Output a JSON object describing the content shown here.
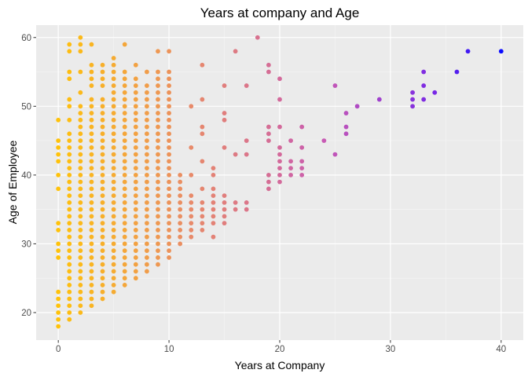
{
  "chart_data": {
    "type": "scatter",
    "title": "Years at company and Age",
    "xlabel": "Years at Company",
    "ylabel": "Age of Employee",
    "xlim": [
      -2,
      42
    ],
    "ylim": [
      16.0,
      61.8
    ],
    "xticks": [
      0,
      10,
      20,
      30,
      40
    ],
    "yticks": [
      20,
      30,
      40,
      50,
      60
    ],
    "grid": true,
    "legend": "none",
    "color_scale": {
      "low": "#FFC20A",
      "mid": "#E88A6A",
      "high": "#0C0CFF",
      "domain": [
        0,
        40
      ]
    },
    "background": "#EBEBEB",
    "points": [
      [
        0,
        18
      ],
      [
        0,
        19
      ],
      [
        0,
        20
      ],
      [
        0,
        21
      ],
      [
        0,
        22
      ],
      [
        0,
        23
      ],
      [
        0,
        28
      ],
      [
        0,
        29
      ],
      [
        0,
        30
      ],
      [
        0,
        32
      ],
      [
        0,
        33
      ],
      [
        0,
        38
      ],
      [
        0,
        40
      ],
      [
        0,
        42
      ],
      [
        0,
        43
      ],
      [
        0,
        44
      ],
      [
        0,
        45
      ],
      [
        0,
        48
      ],
      [
        1,
        19
      ],
      [
        1,
        20
      ],
      [
        1,
        21
      ],
      [
        1,
        22
      ],
      [
        1,
        23
      ],
      [
        1,
        24
      ],
      [
        1,
        25
      ],
      [
        1,
        26
      ],
      [
        1,
        27
      ],
      [
        1,
        28
      ],
      [
        1,
        29
      ],
      [
        1,
        30
      ],
      [
        1,
        31
      ],
      [
        1,
        32
      ],
      [
        1,
        33
      ],
      [
        1,
        34
      ],
      [
        1,
        35
      ],
      [
        1,
        36
      ],
      [
        1,
        37
      ],
      [
        1,
        38
      ],
      [
        1,
        39
      ],
      [
        1,
        40
      ],
      [
        1,
        41
      ],
      [
        1,
        42
      ],
      [
        1,
        43
      ],
      [
        1,
        44
      ],
      [
        1,
        45
      ],
      [
        1,
        46
      ],
      [
        1,
        48
      ],
      [
        1,
        50
      ],
      [
        1,
        51
      ],
      [
        1,
        54
      ],
      [
        1,
        55
      ],
      [
        1,
        58
      ],
      [
        1,
        59
      ],
      [
        2,
        20
      ],
      [
        2,
        21
      ],
      [
        2,
        22
      ],
      [
        2,
        23
      ],
      [
        2,
        24
      ],
      [
        2,
        25
      ],
      [
        2,
        26
      ],
      [
        2,
        27
      ],
      [
        2,
        28
      ],
      [
        2,
        29
      ],
      [
        2,
        30
      ],
      [
        2,
        31
      ],
      [
        2,
        32
      ],
      [
        2,
        33
      ],
      [
        2,
        34
      ],
      [
        2,
        35
      ],
      [
        2,
        36
      ],
      [
        2,
        37
      ],
      [
        2,
        38
      ],
      [
        2,
        39
      ],
      [
        2,
        40
      ],
      [
        2,
        41
      ],
      [
        2,
        42
      ],
      [
        2,
        43
      ],
      [
        2,
        44
      ],
      [
        2,
        45
      ],
      [
        2,
        46
      ],
      [
        2,
        47
      ],
      [
        2,
        48
      ],
      [
        2,
        49
      ],
      [
        2,
        50
      ],
      [
        2,
        52
      ],
      [
        2,
        55
      ],
      [
        2,
        58
      ],
      [
        2,
        59
      ],
      [
        2,
        60
      ],
      [
        3,
        21
      ],
      [
        3,
        22
      ],
      [
        3,
        23
      ],
      [
        3,
        24
      ],
      [
        3,
        25
      ],
      [
        3,
        26
      ],
      [
        3,
        27
      ],
      [
        3,
        28
      ],
      [
        3,
        29
      ],
      [
        3,
        30
      ],
      [
        3,
        31
      ],
      [
        3,
        32
      ],
      [
        3,
        33
      ],
      [
        3,
        34
      ],
      [
        3,
        35
      ],
      [
        3,
        36
      ],
      [
        3,
        37
      ],
      [
        3,
        38
      ],
      [
        3,
        39
      ],
      [
        3,
        40
      ],
      [
        3,
        41
      ],
      [
        3,
        42
      ],
      [
        3,
        43
      ],
      [
        3,
        44
      ],
      [
        3,
        45
      ],
      [
        3,
        46
      ],
      [
        3,
        47
      ],
      [
        3,
        48
      ],
      [
        3,
        49
      ],
      [
        3,
        50
      ],
      [
        3,
        51
      ],
      [
        3,
        53
      ],
      [
        3,
        54
      ],
      [
        3,
        55
      ],
      [
        3,
        56
      ],
      [
        3,
        59
      ],
      [
        4,
        22
      ],
      [
        4,
        23
      ],
      [
        4,
        24
      ],
      [
        4,
        25
      ],
      [
        4,
        26
      ],
      [
        4,
        27
      ],
      [
        4,
        28
      ],
      [
        4,
        29
      ],
      [
        4,
        30
      ],
      [
        4,
        31
      ],
      [
        4,
        32
      ],
      [
        4,
        33
      ],
      [
        4,
        34
      ],
      [
        4,
        35
      ],
      [
        4,
        36
      ],
      [
        4,
        37
      ],
      [
        4,
        38
      ],
      [
        4,
        39
      ],
      [
        4,
        40
      ],
      [
        4,
        41
      ],
      [
        4,
        42
      ],
      [
        4,
        43
      ],
      [
        4,
        44
      ],
      [
        4,
        45
      ],
      [
        4,
        46
      ],
      [
        4,
        47
      ],
      [
        4,
        48
      ],
      [
        4,
        49
      ],
      [
        4,
        50
      ],
      [
        4,
        51
      ],
      [
        4,
        53
      ],
      [
        4,
        54
      ],
      [
        4,
        55
      ],
      [
        4,
        56
      ],
      [
        5,
        23
      ],
      [
        5,
        24
      ],
      [
        5,
        25
      ],
      [
        5,
        26
      ],
      [
        5,
        27
      ],
      [
        5,
        28
      ],
      [
        5,
        29
      ],
      [
        5,
        30
      ],
      [
        5,
        31
      ],
      [
        5,
        32
      ],
      [
        5,
        33
      ],
      [
        5,
        34
      ],
      [
        5,
        35
      ],
      [
        5,
        36
      ],
      [
        5,
        37
      ],
      [
        5,
        38
      ],
      [
        5,
        39
      ],
      [
        5,
        40
      ],
      [
        5,
        41
      ],
      [
        5,
        42
      ],
      [
        5,
        43
      ],
      [
        5,
        44
      ],
      [
        5,
        45
      ],
      [
        5,
        46
      ],
      [
        5,
        47
      ],
      [
        5,
        48
      ],
      [
        5,
        49
      ],
      [
        5,
        50
      ],
      [
        5,
        51
      ],
      [
        5,
        52
      ],
      [
        5,
        53
      ],
      [
        5,
        54
      ],
      [
        5,
        55
      ],
      [
        5,
        56
      ],
      [
        5,
        57
      ],
      [
        6,
        24
      ],
      [
        6,
        25
      ],
      [
        6,
        26
      ],
      [
        6,
        27
      ],
      [
        6,
        28
      ],
      [
        6,
        29
      ],
      [
        6,
        30
      ],
      [
        6,
        31
      ],
      [
        6,
        32
      ],
      [
        6,
        33
      ],
      [
        6,
        34
      ],
      [
        6,
        35
      ],
      [
        6,
        36
      ],
      [
        6,
        37
      ],
      [
        6,
        38
      ],
      [
        6,
        39
      ],
      [
        6,
        40
      ],
      [
        6,
        41
      ],
      [
        6,
        42
      ],
      [
        6,
        43
      ],
      [
        6,
        44
      ],
      [
        6,
        45
      ],
      [
        6,
        46
      ],
      [
        6,
        47
      ],
      [
        6,
        48
      ],
      [
        6,
        49
      ],
      [
        6,
        50
      ],
      [
        6,
        51
      ],
      [
        6,
        52
      ],
      [
        6,
        53
      ],
      [
        6,
        54
      ],
      [
        6,
        55
      ],
      [
        6,
        59
      ],
      [
        7,
        25
      ],
      [
        7,
        26
      ],
      [
        7,
        27
      ],
      [
        7,
        28
      ],
      [
        7,
        29
      ],
      [
        7,
        30
      ],
      [
        7,
        31
      ],
      [
        7,
        32
      ],
      [
        7,
        33
      ],
      [
        7,
        34
      ],
      [
        7,
        35
      ],
      [
        7,
        36
      ],
      [
        7,
        37
      ],
      [
        7,
        38
      ],
      [
        7,
        39
      ],
      [
        7,
        40
      ],
      [
        7,
        41
      ],
      [
        7,
        42
      ],
      [
        7,
        43
      ],
      [
        7,
        44
      ],
      [
        7,
        45
      ],
      [
        7,
        46
      ],
      [
        7,
        47
      ],
      [
        7,
        48
      ],
      [
        7,
        49
      ],
      [
        7,
        50
      ],
      [
        7,
        51
      ],
      [
        7,
        52
      ],
      [
        7,
        53
      ],
      [
        7,
        54
      ],
      [
        7,
        56
      ],
      [
        8,
        26
      ],
      [
        8,
        27
      ],
      [
        8,
        28
      ],
      [
        8,
        29
      ],
      [
        8,
        30
      ],
      [
        8,
        31
      ],
      [
        8,
        32
      ],
      [
        8,
        33
      ],
      [
        8,
        34
      ],
      [
        8,
        35
      ],
      [
        8,
        36
      ],
      [
        8,
        37
      ],
      [
        8,
        38
      ],
      [
        8,
        39
      ],
      [
        8,
        40
      ],
      [
        8,
        41
      ],
      [
        8,
        42
      ],
      [
        8,
        43
      ],
      [
        8,
        44
      ],
      [
        8,
        45
      ],
      [
        8,
        46
      ],
      [
        8,
        47
      ],
      [
        8,
        48
      ],
      [
        8,
        49
      ],
      [
        8,
        50
      ],
      [
        8,
        51
      ],
      [
        8,
        52
      ],
      [
        8,
        53
      ],
      [
        8,
        55
      ],
      [
        9,
        27
      ],
      [
        9,
        28
      ],
      [
        9,
        29
      ],
      [
        9,
        30
      ],
      [
        9,
        31
      ],
      [
        9,
        32
      ],
      [
        9,
        33
      ],
      [
        9,
        34
      ],
      [
        9,
        35
      ],
      [
        9,
        36
      ],
      [
        9,
        37
      ],
      [
        9,
        38
      ],
      [
        9,
        39
      ],
      [
        9,
        40
      ],
      [
        9,
        41
      ],
      [
        9,
        42
      ],
      [
        9,
        43
      ],
      [
        9,
        44
      ],
      [
        9,
        45
      ],
      [
        9,
        46
      ],
      [
        9,
        47
      ],
      [
        9,
        48
      ],
      [
        9,
        49
      ],
      [
        9,
        50
      ],
      [
        9,
        51
      ],
      [
        9,
        52
      ],
      [
        9,
        53
      ],
      [
        9,
        54
      ],
      [
        9,
        55
      ],
      [
        9,
        58
      ],
      [
        10,
        28
      ],
      [
        10,
        29
      ],
      [
        10,
        30
      ],
      [
        10,
        31
      ],
      [
        10,
        32
      ],
      [
        10,
        33
      ],
      [
        10,
        34
      ],
      [
        10,
        35
      ],
      [
        10,
        36
      ],
      [
        10,
        37
      ],
      [
        10,
        38
      ],
      [
        10,
        39
      ],
      [
        10,
        40
      ],
      [
        10,
        41
      ],
      [
        10,
        42
      ],
      [
        10,
        43
      ],
      [
        10,
        44
      ],
      [
        10,
        45
      ],
      [
        10,
        46
      ],
      [
        10,
        47
      ],
      [
        10,
        48
      ],
      [
        10,
        49
      ],
      [
        10,
        50
      ],
      [
        10,
        51
      ],
      [
        10,
        52
      ],
      [
        10,
        53
      ],
      [
        10,
        54
      ],
      [
        10,
        55
      ],
      [
        10,
        58
      ],
      [
        11,
        30
      ],
      [
        11,
        31
      ],
      [
        11,
        32
      ],
      [
        11,
        33
      ],
      [
        11,
        34
      ],
      [
        11,
        35
      ],
      [
        11,
        36
      ],
      [
        11,
        37
      ],
      [
        11,
        38
      ],
      [
        11,
        39
      ],
      [
        11,
        40
      ],
      [
        12,
        31
      ],
      [
        12,
        32
      ],
      [
        12,
        33
      ],
      [
        12,
        34
      ],
      [
        12,
        35
      ],
      [
        12,
        36
      ],
      [
        12,
        37
      ],
      [
        12,
        40
      ],
      [
        12,
        44
      ],
      [
        12,
        50
      ],
      [
        13,
        32
      ],
      [
        13,
        33
      ],
      [
        13,
        34
      ],
      [
        13,
        35
      ],
      [
        13,
        36
      ],
      [
        13,
        38
      ],
      [
        13,
        42
      ],
      [
        13,
        46
      ],
      [
        13,
        47
      ],
      [
        13,
        51
      ],
      [
        13,
        56
      ],
      [
        14,
        31
      ],
      [
        14,
        33
      ],
      [
        14,
        34
      ],
      [
        14,
        35
      ],
      [
        14,
        36
      ],
      [
        14,
        37
      ],
      [
        14,
        38
      ],
      [
        14,
        40
      ],
      [
        14,
        41
      ],
      [
        15,
        33
      ],
      [
        15,
        34
      ],
      [
        15,
        35
      ],
      [
        15,
        36
      ],
      [
        15,
        37
      ],
      [
        15,
        44
      ],
      [
        15,
        48
      ],
      [
        15,
        49
      ],
      [
        15,
        53
      ],
      [
        16,
        35
      ],
      [
        16,
        36
      ],
      [
        16,
        43
      ],
      [
        16,
        58
      ],
      [
        17,
        35
      ],
      [
        17,
        36
      ],
      [
        17,
        43
      ],
      [
        17,
        45
      ],
      [
        17,
        53
      ],
      [
        18,
        60
      ],
      [
        19,
        38
      ],
      [
        19,
        39
      ],
      [
        19,
        40
      ],
      [
        19,
        45
      ],
      [
        19,
        46
      ],
      [
        19,
        47
      ],
      [
        19,
        55
      ],
      [
        19,
        56
      ],
      [
        20,
        39
      ],
      [
        20,
        40
      ],
      [
        20,
        41
      ],
      [
        20,
        42
      ],
      [
        20,
        43
      ],
      [
        20,
        44
      ],
      [
        20,
        47
      ],
      [
        20,
        51
      ],
      [
        20,
        54
      ],
      [
        21,
        40
      ],
      [
        21,
        41
      ],
      [
        21,
        42
      ],
      [
        21,
        45
      ],
      [
        22,
        40
      ],
      [
        22,
        41
      ],
      [
        22,
        42
      ],
      [
        22,
        44
      ],
      [
        22,
        47
      ],
      [
        24,
        45
      ],
      [
        25,
        43
      ],
      [
        25,
        53
      ],
      [
        26,
        46
      ],
      [
        26,
        47
      ],
      [
        26,
        49
      ],
      [
        27,
        50
      ],
      [
        29,
        51
      ],
      [
        32,
        50
      ],
      [
        32,
        51
      ],
      [
        32,
        52
      ],
      [
        33,
        51
      ],
      [
        33,
        53
      ],
      [
        33,
        55
      ],
      [
        34,
        52
      ],
      [
        36,
        55
      ],
      [
        37,
        58
      ],
      [
        40,
        58
      ]
    ]
  }
}
